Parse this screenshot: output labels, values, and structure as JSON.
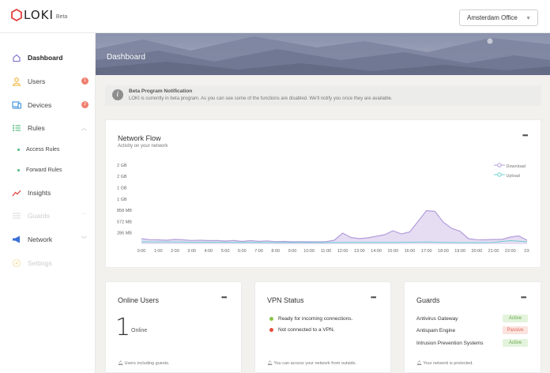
{
  "app": {
    "name": "LOKI",
    "badge": "Beta"
  },
  "office_select": {
    "value": "Amsterdam Office"
  },
  "sidebar": {
    "items": [
      {
        "label": "Dashboard",
        "icon": "home-icon",
        "active": true
      },
      {
        "label": "Users",
        "icon": "user-icon",
        "badge": "1"
      },
      {
        "label": "Devices",
        "icon": "laptop-icon",
        "badge": "2"
      },
      {
        "label": "Rules",
        "icon": "list-icon",
        "expanded": true
      },
      {
        "label": "Insights",
        "icon": "trend-icon"
      },
      {
        "label": "Guards",
        "icon": "guards-icon",
        "disabled": true
      },
      {
        "label": "Network",
        "icon": "megaphone-icon"
      },
      {
        "label": "Settings",
        "icon": "settings-icon",
        "disabled": true
      }
    ],
    "sub_items": [
      "Access Rules",
      "Forward Rules"
    ]
  },
  "page": {
    "title": "Dashboard"
  },
  "notification": {
    "title": "Beta Program Notification",
    "text": "LOKI is currently in beta program. As you can see some of the functions are disabled. We'll notify you once they are available."
  },
  "network_flow": {
    "title": "Network Flow",
    "subtitle": "Activity on your network",
    "more": "•••",
    "legend": [
      "Download",
      "Upload"
    ]
  },
  "chart_data": {
    "type": "area",
    "title": "Network Flow",
    "subtitle": "Activity on your network",
    "y_tick_labels": [
      "2 GB",
      "2 GB",
      "1 GB",
      "1 GB",
      "858 MB",
      "572 MB",
      "286 MB"
    ],
    "y_tick_values_mb": [
      2000,
      1716,
      1430,
      1144,
      858,
      572,
      286
    ],
    "x": [
      "0:00",
      "1:00",
      "2:00",
      "3:00",
      "4:00",
      "5:00",
      "6:00",
      "7:00",
      "8:00",
      "9:00",
      "10:00",
      "11:00",
      "12:00",
      "13:00",
      "14:00",
      "15:00",
      "16:00",
      "17:00",
      "18:00",
      "19:00",
      "20:00",
      "21:00",
      "22:00",
      "23:"
    ],
    "series": [
      {
        "name": "Download",
        "color": "#b39ddb",
        "fill": "#e6ddf3",
        "x": [
          0,
          0.5,
          1,
          1.5,
          2,
          2.5,
          3,
          3.5,
          4,
          4.5,
          5,
          5.5,
          6,
          6.5,
          7,
          7.5,
          8,
          8.5,
          9,
          9.5,
          10,
          10.5,
          11,
          11.5,
          12,
          12.5,
          13,
          13.5,
          14,
          14.5,
          15,
          15.5,
          16,
          16.5,
          17,
          17.5,
          18,
          18.5,
          19,
          19.5,
          20,
          20.5,
          21,
          21.5,
          22,
          22.5,
          23
        ],
        "values": [
          140,
          115,
          110,
          100,
          120,
          110,
          95,
          100,
          90,
          95,
          80,
          95,
          70,
          90,
          75,
          85,
          65,
          70,
          60,
          65,
          60,
          60,
          65,
          100,
          280,
          170,
          140,
          160,
          200,
          240,
          340,
          260,
          310,
          580,
          850,
          830,
          560,
          400,
          330,
          140,
          115,
          110,
          120,
          120,
          180,
          210,
          100
        ]
      },
      {
        "name": "Upload",
        "color": "#6ccfd0",
        "x": [
          0,
          1,
          2,
          3,
          4,
          5,
          6,
          7,
          8,
          9,
          10,
          11,
          12,
          13,
          14,
          15,
          16,
          17,
          18,
          19,
          20,
          21,
          22,
          23
        ],
        "values": [
          60,
          55,
          55,
          50,
          50,
          50,
          45,
          45,
          40,
          40,
          40,
          40,
          45,
          45,
          45,
          45,
          50,
          55,
          45,
          40,
          40,
          45,
          90,
          60
        ]
      }
    ],
    "ylim": [
      0,
      2000
    ],
    "grid": false,
    "legend_position": "top-right"
  },
  "online_users": {
    "title": "Online Users",
    "more": "•••",
    "count": "1",
    "count_label": "Online",
    "footer": "Users including guests."
  },
  "vpn_status": {
    "title": "VPN Status",
    "more": "•••",
    "lines": [
      {
        "text": "Ready for incoming connections.",
        "color": "#8bc34a"
      },
      {
        "text": "Not connected to a VPN.",
        "color": "#e74c3c"
      }
    ],
    "footer": "You can access your network from outside."
  },
  "guards": {
    "title": "Guards",
    "more": "•••",
    "rows": [
      {
        "name": "Antivirus Gateway",
        "status": "Active",
        "bg": "#e4f4dc",
        "fg": "#6aa84f"
      },
      {
        "name": "Antispam Engine",
        "status": "Passive",
        "bg": "#fbe3df",
        "fg": "#e06c5a"
      },
      {
        "name": "Intrusion Prevention Systems",
        "status": "Active",
        "bg": "#e4f4dc",
        "fg": "#6aa84f"
      }
    ],
    "footer": "Your network is protected."
  }
}
